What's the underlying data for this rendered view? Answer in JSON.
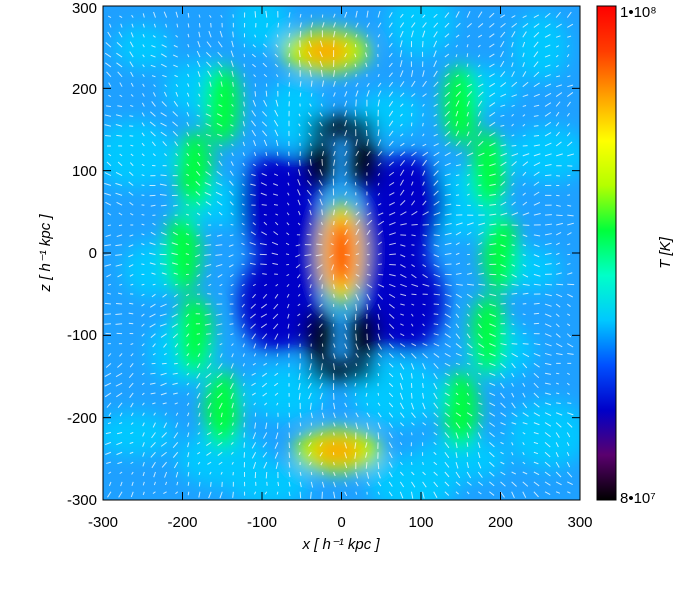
{
  "chart_data": {
    "type": "heatmap",
    "title": "",
    "xlabel": "x [ h⁻¹ kpc ]",
    "ylabel": "z [ h⁻¹ kpc ]",
    "xlim": [
      -300,
      300
    ],
    "ylim": [
      -300,
      300
    ],
    "x_ticks": [
      "-300",
      "-200",
      "-100",
      "0",
      "100",
      "200",
      "300"
    ],
    "y_ticks": [
      "-300",
      "-200",
      "-100",
      "0",
      "100",
      "200",
      "300"
    ],
    "overlay": "velocity vector field (white arrows)",
    "colorbar": {
      "label": "T [K]",
      "min_label": "8•10⁷",
      "max_label": "1•10⁸",
      "min": 80000000,
      "max": 100000000,
      "colormap": [
        "#000000",
        "#5a006e",
        "#0000c8",
        "#0050ff",
        "#00c8ff",
        "#00ffc8",
        "#00ff3c",
        "#b4ff00",
        "#ffff00",
        "#ffa000",
        "#ff3c00",
        "#ff0000"
      ]
    },
    "features": [
      {
        "name": "core",
        "x": 0,
        "z": 0,
        "level": 0.95
      },
      {
        "name": "upper lobe",
        "x": -20,
        "z": 245,
        "level": 0.8
      },
      {
        "name": "lower lobe",
        "x": -5,
        "z": -240,
        "level": 0.8
      },
      {
        "name": "cold cavity",
        "x": 0,
        "z": 110,
        "level": 0.02
      },
      {
        "name": "cold cavity",
        "x": 0,
        "z": -100,
        "level": 0.02
      }
    ]
  }
}
